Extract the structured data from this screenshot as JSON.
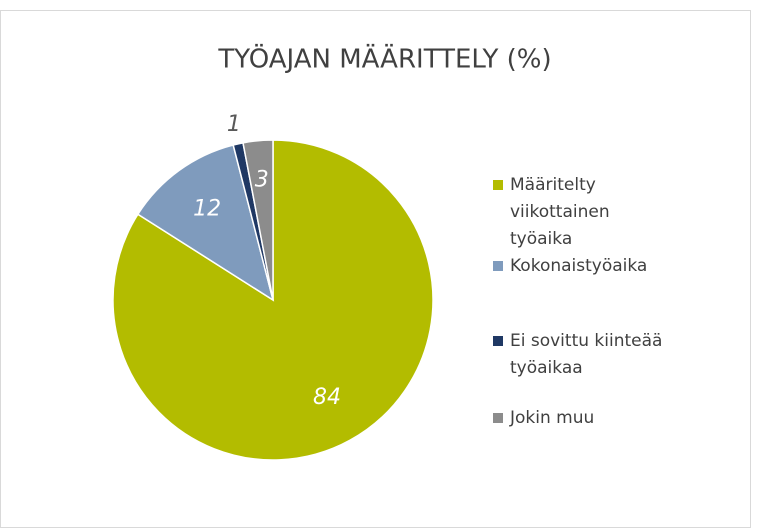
{
  "chart_data": {
    "type": "pie",
    "title": "TYÖAJAN MÄÄRITTELY (%)",
    "categories": [
      "Määritelty viikottainen työaika",
      "Kokonaistyöaika",
      "Ei sovittu kiinteää työaikaa",
      "Jokin muu"
    ],
    "values": [
      84,
      12,
      1,
      3
    ],
    "colors": [
      "#b3bc00",
      "#7f9bbd",
      "#1f3864",
      "#8c8c8c"
    ],
    "legend": "right"
  }
}
